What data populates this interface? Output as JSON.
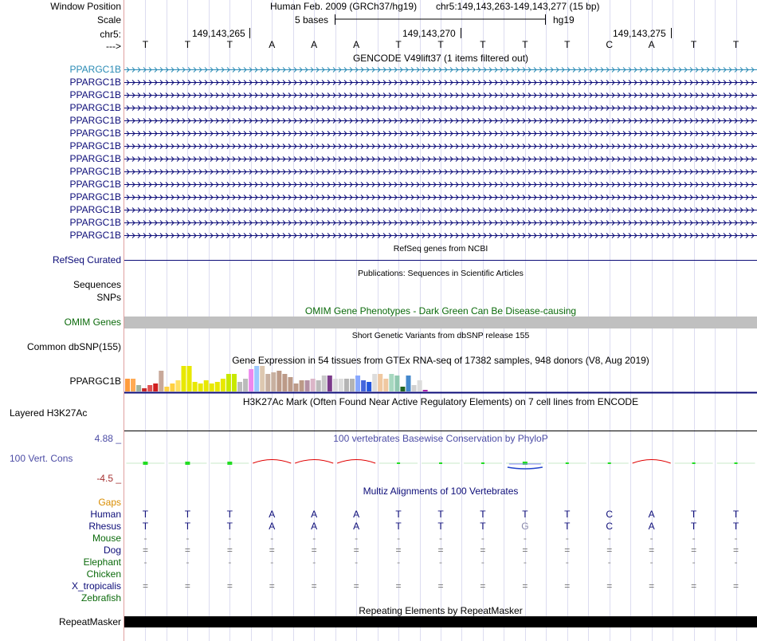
{
  "colors": {
    "gene_blue": "#0c0c78",
    "gene_highlight": "#2a8bb5",
    "omim_green": "#0b6a0b",
    "cons_blue": "#4c4ca5",
    "cons_red": "#a53030",
    "gaps_orange": "#d98c00",
    "grid_line": "#dcdcf0"
  },
  "labels": {
    "window_position": "Window Position",
    "scale": "Scale",
    "chrom": "chr5:",
    "arrow": "--->",
    "refseq": "RefSeq Curated",
    "sequences": "Sequences",
    "snps": "SNPs",
    "omim": "OMIM Genes",
    "dbsnp": "Common dbSNP(155)",
    "gtex_gene": "PPARGC1B",
    "h3k27ac": "Layered H3K27Ac",
    "cons_max": "4.88 _",
    "cons_label": "100 Vert. Cons",
    "cons_min": "-4.5 _",
    "gaps": "Gaps",
    "repeatmasker": "RepeatMasker"
  },
  "header": {
    "assembly": "Human Feb. 2009 (GRCh37/hg19)",
    "position": "chr5:149,143,263-149,143,277 (15 bp)",
    "scale_text": "5 bases",
    "scale_db": "hg19",
    "coords": [
      "149,143,265",
      "149,143,270",
      "149,143,275"
    ]
  },
  "sequence": [
    "T",
    "T",
    "T",
    "A",
    "A",
    "A",
    "T",
    "T",
    "T",
    "T",
    "T",
    "C",
    "A",
    "T",
    "T"
  ],
  "gencode": {
    "title": "GENCODE V49lift37 (1 items filtered out)",
    "transcripts": [
      "PPARGC1B",
      "PPARGC1B",
      "PPARGC1B",
      "PPARGC1B",
      "PPARGC1B",
      "PPARGC1B",
      "PPARGC1B",
      "PPARGC1B",
      "PPARGC1B",
      "PPARGC1B",
      "PPARGC1B",
      "PPARGC1B",
      "PPARGC1B",
      "PPARGC1B"
    ]
  },
  "tracks": {
    "refseq_title": "RefSeq genes from NCBI",
    "pubs_title": "Publications: Sequences in Scientific Articles",
    "omim_title": "OMIM Gene Phenotypes - Dark Green Can Be Disease-causing",
    "dbsnp_title": "Short Genetic Variants from dbSNP release 155",
    "gtex_title": "Gene Expression in 54 tissues from GTEx RNA-seq of 17382 samples, 948 donors (V8, Aug 2019)",
    "h3k27ac_title": "H3K27Ac Mark (Often Found Near Active Regulatory Elements) on 7 cell lines from ENCODE",
    "cons_title": "100 vertebrates Basewise Conservation by PhyloP",
    "multiz_title": "Multiz Alignments of 100 Vertebrates",
    "repeat_title": "Repeating Elements by RepeatMasker"
  },
  "conservation": [
    0.12,
    0.12,
    0.12,
    -0.25,
    -0.25,
    -0.25,
    0.06,
    0.04,
    0.06,
    0.12,
    0.06,
    0.02,
    -0.25,
    0.04,
    0.06
  ],
  "gtex": {
    "values": [
      16,
      16,
      8,
      4,
      8,
      10,
      26,
      6,
      10,
      14,
      32,
      32,
      12,
      10,
      14,
      10,
      12,
      16,
      22,
      22,
      12,
      16,
      28,
      32,
      32,
      22,
      24,
      26,
      22,
      18,
      10,
      14,
      14,
      16,
      14,
      20,
      20,
      16,
      16,
      16,
      16,
      20,
      14,
      12,
      22,
      22,
      16,
      22,
      20,
      6,
      20,
      8,
      14,
      2
    ],
    "colors": [
      "#ff9a3c",
      "#ffaa54",
      "#a0b4a0",
      "#c82828",
      "#e05050",
      "#d02020",
      "#c8a89a",
      "#ffd040",
      "#ffd040",
      "#ffe060",
      "#e8e800",
      "#e8e800",
      "#e8e800",
      "#e8e800",
      "#e8e800",
      "#e8e800",
      "#e8e800",
      "#e8e800",
      "#c8e800",
      "#c8e800",
      "#bbbbbb",
      "#bbbbbb",
      "#ee88ee",
      "#9cc8ff",
      "#ddc8b0",
      "#c8b0a0",
      "#c8b0a0",
      "#bc9a88",
      "#bc9a88",
      "#bc9a88",
      "#bc9a88",
      "#bc9a88",
      "#b490a4",
      "#dbb6c8",
      "#bbbbbb",
      "#c8c8c8",
      "#7b3a8a",
      "#dcdcdc",
      "#dcdcdc",
      "#b4b4b4",
      "#b4b4b4",
      "#88a8ff",
      "#4466dd",
      "#2255dd",
      "#dcdcdc",
      "#f0c8a0",
      "#f0c8a0",
      "#a8d8c0",
      "#90c8b0",
      "#226622",
      "#4488cc",
      "#d0d0d0",
      "#dcdcdc",
      "#aa22aa"
    ]
  },
  "multiz": {
    "species": [
      {
        "name": "Human",
        "color": "#0c0c78",
        "bases": [
          "T",
          "T",
          "T",
          "A",
          "A",
          "A",
          "T",
          "T",
          "T",
          "T",
          "T",
          "C",
          "A",
          "T",
          "T"
        ]
      },
      {
        "name": "Rhesus",
        "color": "#0c0c78",
        "bases": [
          "T",
          "T",
          "T",
          "A",
          "A",
          "A",
          "T",
          "T",
          "T",
          "G",
          "T",
          "C",
          "A",
          "T",
          "T"
        ]
      },
      {
        "name": "Mouse",
        "color": "#0b6a0b",
        "bases": [
          "-",
          "-",
          "-",
          "-",
          "-",
          "-",
          "-",
          "-",
          "-",
          "-",
          "-",
          "-",
          "-",
          "-",
          "-"
        ]
      },
      {
        "name": "Dog",
        "color": "#0c0c78",
        "bases": [
          "=",
          "=",
          "=",
          "=",
          "=",
          "=",
          "=",
          "=",
          "=",
          "=",
          "=",
          "=",
          "=",
          "=",
          "="
        ]
      },
      {
        "name": "Elephant",
        "color": "#0b6a0b",
        "bases": [
          "-",
          "-",
          "-",
          "-",
          "-",
          "-",
          "-",
          "-",
          "-",
          "-",
          "-",
          "-",
          "-",
          "-",
          "-"
        ]
      },
      {
        "name": "Chicken",
        "color": "#0b6a0b",
        "bases": [
          "",
          "",
          "",
          "",
          "",
          "",
          "",
          "",
          "",
          "",
          "",
          "",
          "",
          "",
          ""
        ]
      },
      {
        "name": "X_tropicalis",
        "color": "#0c0c78",
        "bases": [
          "=",
          "=",
          "=",
          "=",
          "=",
          "=",
          "=",
          "=",
          "=",
          "=",
          "=",
          "=",
          "=",
          "=",
          "="
        ]
      },
      {
        "name": "Zebrafish",
        "color": "#0b6a0b",
        "bases": [
          "",
          "",
          "",
          "",
          "",
          "",
          "",
          "",
          "",
          "",
          "",
          "",
          "",
          "",
          ""
        ]
      }
    ]
  }
}
